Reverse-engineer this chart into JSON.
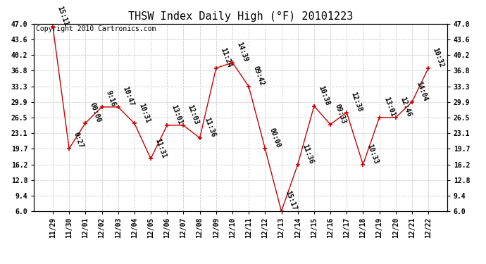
{
  "title": "THSW Index Daily High (°F) 20101223",
  "copyright": "Copyright 2010 Cartronics.com",
  "x_labels": [
    "11/29",
    "11/30",
    "12/01",
    "12/02",
    "12/03",
    "12/04",
    "12/05",
    "12/06",
    "12/07",
    "12/08",
    "12/09",
    "12/10",
    "12/11",
    "12/12",
    "12/13",
    "12/14",
    "12/15",
    "12/16",
    "12/17",
    "12/18",
    "12/19",
    "12/20",
    "12/21",
    "12/22"
  ],
  "y_values": [
    46.4,
    19.7,
    25.3,
    28.8,
    28.8,
    25.2,
    17.5,
    24.8,
    24.8,
    22.0,
    37.3,
    38.5,
    33.3,
    19.7,
    6.0,
    16.2,
    29.0,
    25.0,
    27.6,
    16.2,
    26.5,
    26.5,
    29.9,
    37.3
  ],
  "point_labels": [
    "15:11",
    "0:27",
    "00:00",
    "9:16",
    "10:47",
    "10:31",
    "11:31",
    "13:01",
    "12:03",
    "11:36",
    "11:24",
    "14:39",
    "09:42",
    "00:00",
    "15:17",
    "11:36",
    "10:38",
    "09:33",
    "12:38",
    "10:33",
    "13:01",
    "12:46",
    "14:04",
    "10:32"
  ],
  "line_color": "#cc0000",
  "marker_color": "#cc0000",
  "bg_color": "#ffffff",
  "grid_color": "#cccccc",
  "ylim_min": 6.0,
  "ylim_max": 47.0,
  "yticks": [
    6.0,
    9.4,
    12.8,
    16.2,
    19.7,
    23.1,
    26.5,
    29.9,
    33.3,
    36.8,
    40.2,
    43.6,
    47.0
  ],
  "title_fontsize": 11,
  "label_fontsize": 7,
  "annotation_fontsize": 7,
  "copyright_fontsize": 7
}
